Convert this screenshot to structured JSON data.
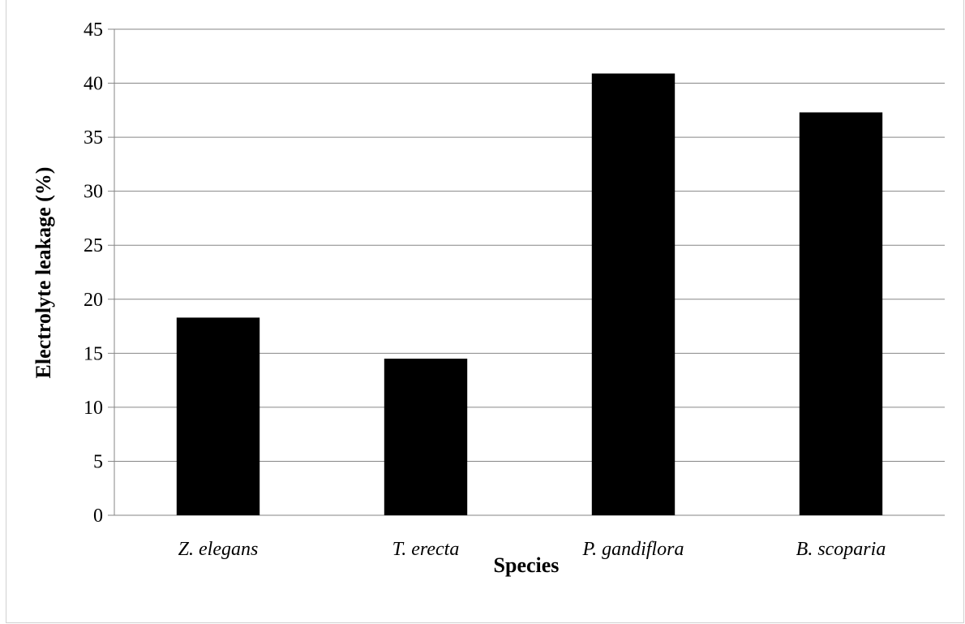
{
  "chart_data": {
    "type": "bar",
    "categories": [
      "Z. elegans",
      "T. erecta",
      "P. gandiflora",
      "B. scoparia"
    ],
    "values": [
      18.3,
      14.5,
      40.9,
      37.3
    ],
    "xlabel": "Species",
    "ylabel": "Electrolyte leakage (%)",
    "ylim": [
      0,
      45
    ],
    "yticks": [
      0,
      5,
      10,
      15,
      20,
      25,
      30,
      35,
      40,
      45
    ],
    "grid": true,
    "bar_color": "#000000",
    "grid_color": "#868686"
  }
}
